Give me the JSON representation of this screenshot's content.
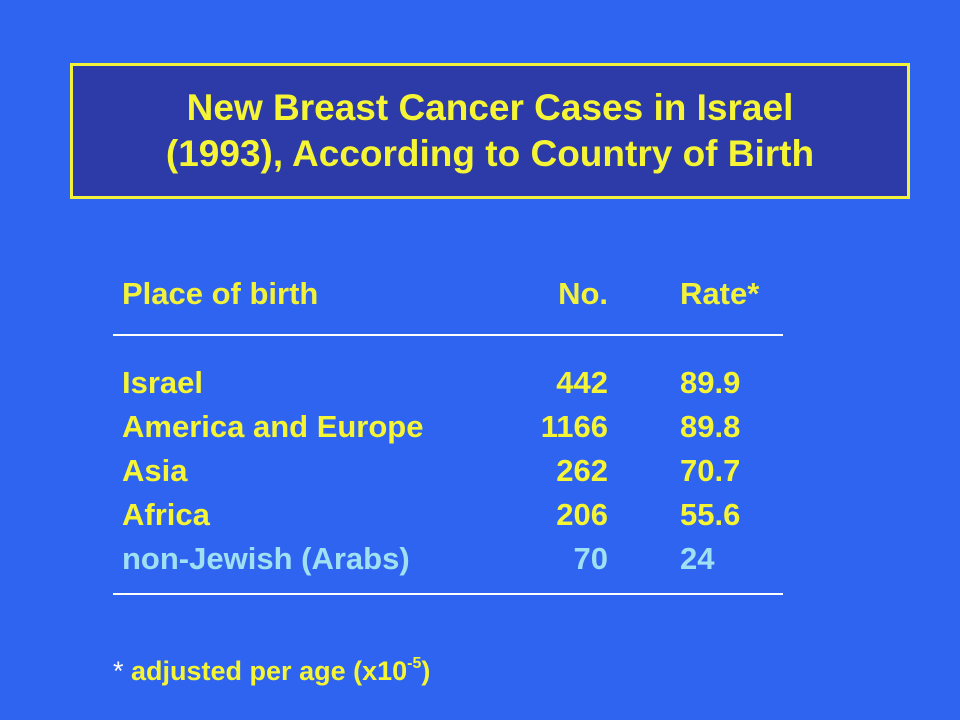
{
  "title": {
    "line1": "New Breast Cancer Cases in Israel",
    "line2": "(1993), According to Country of Birth"
  },
  "table": {
    "headers": {
      "place": "Place of birth",
      "no": "No.",
      "rate": "Rate*"
    },
    "rows": [
      {
        "place": "Israel",
        "no": "442",
        "rate": "89.9"
      },
      {
        "place": "America and Europe",
        "no": "1166",
        "rate": "89.8"
      },
      {
        "place": "Asia",
        "no": "262",
        "rate": "70.7"
      },
      {
        "place": "Africa",
        "no": "206",
        "rate": "55.6"
      },
      {
        "place": "non-Jewish (Arabs)",
        "no": "70",
        "rate": "24"
      }
    ]
  },
  "footnote": {
    "star": "*",
    "text": "adjusted per age (x10",
    "exponent": "-5",
    "close": ")"
  },
  "colors": {
    "background": "#2f64f0",
    "title_box": "#2c3ba8",
    "text_yellow": "#f5f535",
    "highlight_cyan": "#9fe0f2"
  }
}
